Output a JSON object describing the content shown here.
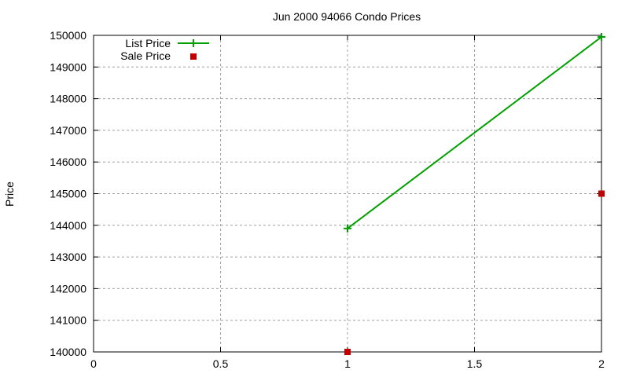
{
  "chart_data": {
    "type": "line",
    "title": "Jun 2000 94066 Condo Prices",
    "xlabel": "",
    "ylabel": "Price",
    "xlim": [
      0,
      2
    ],
    "ylim": [
      140000,
      150000
    ],
    "x_ticks": [
      "0",
      "0.5",
      "1",
      "1.5",
      "2"
    ],
    "y_ticks": [
      "140000",
      "141000",
      "142000",
      "143000",
      "144000",
      "145000",
      "146000",
      "147000",
      "148000",
      "149000",
      "150000"
    ],
    "grid": true,
    "legend_position": "top-left",
    "series": [
      {
        "name": "List Price",
        "style": "linespoints",
        "marker": "plus",
        "color": "#00a000",
        "x": [
          1,
          2
        ],
        "values": [
          143900,
          149950
        ]
      },
      {
        "name": "Sale Price",
        "style": "points",
        "marker": "square",
        "color": "#c00000",
        "x": [
          1,
          2
        ],
        "values": [
          140000,
          145000
        ]
      }
    ]
  }
}
